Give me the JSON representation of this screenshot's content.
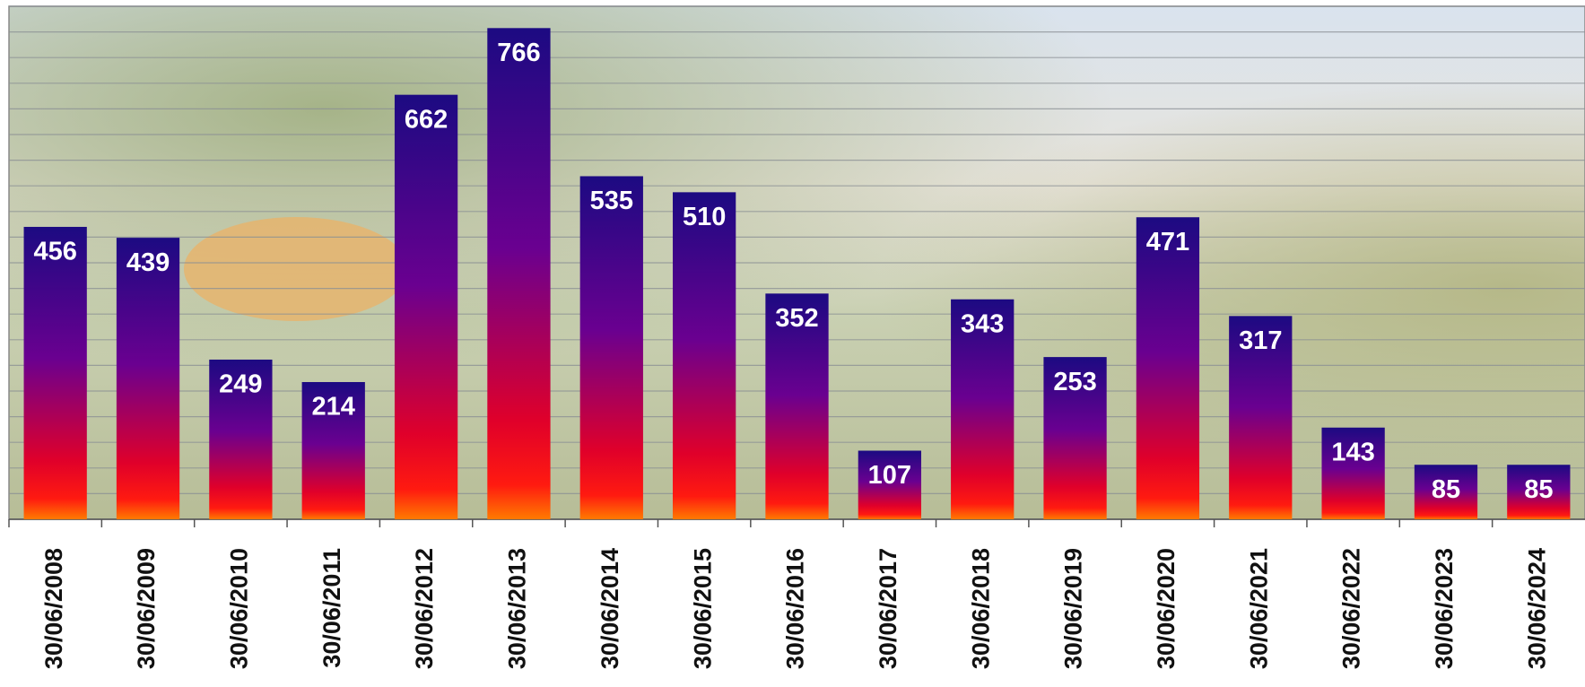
{
  "chart_data": {
    "type": "bar",
    "categories": [
      "30/06/2008",
      "30/06/2009",
      "30/06/2010",
      "30/06/2011",
      "30/06/2012",
      "30/06/2013",
      "30/06/2014",
      "30/06/2015",
      "30/06/2016",
      "30/06/2017",
      "30/06/2018",
      "30/06/2019",
      "30/06/2020",
      "30/06/2021",
      "30/06/2022",
      "30/06/2023",
      "30/06/2024"
    ],
    "values": [
      456,
      439,
      249,
      214,
      662,
      766,
      535,
      510,
      352,
      107,
      343,
      253,
      471,
      317,
      143,
      85,
      85
    ],
    "ylim": [
      0,
      800
    ],
    "yticks": [
      0,
      40,
      80,
      120,
      160,
      200,
      240,
      280,
      320,
      360,
      400,
      440,
      480,
      520,
      560,
      600,
      640,
      680,
      720,
      760,
      800
    ],
    "grid": true
  }
}
